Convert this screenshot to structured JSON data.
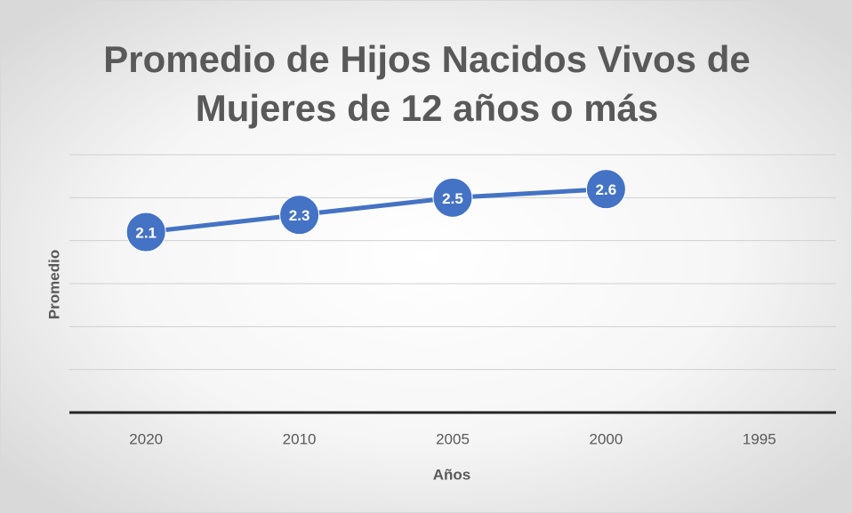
{
  "chart_data": {
    "type": "line",
    "title": [
      "Promedio de Hijos Nacidos Vivos de",
      "Mujeres de 12 años o más"
    ],
    "x_label": "Años",
    "y_label": "Promedio",
    "categories": [
      "2020",
      "2010",
      "2005",
      "2000",
      "1995"
    ],
    "series": [
      {
        "name": "Promedio",
        "color": "#4472c4",
        "values": [
          2.1,
          2.3,
          2.5,
          2.6,
          null
        ]
      }
    ],
    "ylim": [
      0,
      3
    ],
    "yticks": [
      0,
      0.5,
      1,
      1.5,
      2,
      2.5,
      3
    ],
    "grid": true
  }
}
